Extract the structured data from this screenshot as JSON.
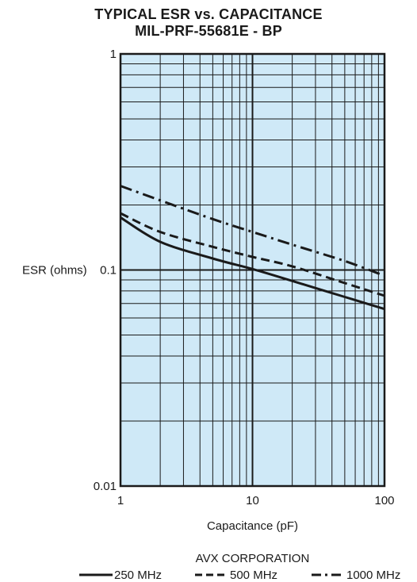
{
  "chart_data": {
    "type": "line",
    "title": "TYPICAL ESR vs. CAPACITANCE",
    "subtitle": "MIL-PRF-55681E - BP",
    "xlabel": "Capacitance (pF)",
    "ylabel": "ESR (ohms)",
    "xscale": "log",
    "yscale": "log",
    "xlim": [
      1,
      100
    ],
    "ylim": [
      0.01,
      1
    ],
    "x_ticks": [
      "1",
      "10",
      "100"
    ],
    "y_ticks": [
      "0.01",
      "0.1",
      "1"
    ],
    "grid": true,
    "legend_placement": "bottom",
    "series": [
      {
        "name": "250 MHz",
        "style": "solid",
        "x": [
          1,
          2,
          5,
          10,
          20,
          50,
          100
        ],
        "values": [
          0.175,
          0.135,
          0.113,
          0.101,
          0.089,
          0.075,
          0.066
        ]
      },
      {
        "name": "500 MHz",
        "style": "dashed",
        "x": [
          1,
          2,
          5,
          10,
          20,
          50,
          100
        ],
        "values": [
          0.183,
          0.15,
          0.128,
          0.115,
          0.104,
          0.087,
          0.076
        ]
      },
      {
        "name": "1000 MHz",
        "style": "dash-dot",
        "x": [
          1,
          2,
          5,
          10,
          20,
          50,
          100
        ],
        "values": [
          0.245,
          0.21,
          0.172,
          0.15,
          0.131,
          0.11,
          0.094
        ]
      }
    ],
    "colors": {
      "plot_background": "#cfe9f7",
      "grid": "#1a1a1a",
      "line": "#1a1a1a"
    }
  },
  "footer": {
    "company": "AVX CORPORATION"
  }
}
